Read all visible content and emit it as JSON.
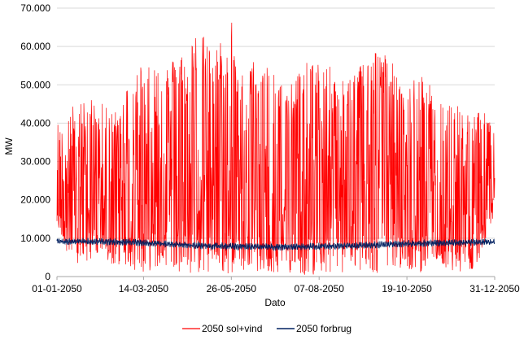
{
  "chart_data": {
    "type": "line",
    "title": "",
    "xlabel": "Dato",
    "ylabel": "MW",
    "ylim": [
      0,
      70000
    ],
    "x_range": [
      "01-01-2050",
      "31-12-2050"
    ],
    "x_ticks": [
      "01-01-2050",
      "14-03-2050",
      "26-05-2050",
      "07-08-2050",
      "19-10-2050",
      "31-12-2050"
    ],
    "y_ticks": [
      "0",
      "10.000",
      "20.000",
      "30.000",
      "40.000",
      "50.000",
      "60.000",
      "70.000"
    ],
    "grid": "horizontal",
    "legend_position": "bottom",
    "series": [
      {
        "name": "2050 sol+vind",
        "color": "#ff0000",
        "x": [
          "01-01-2050",
          "15-01-2050",
          "01-02-2050",
          "15-02-2050",
          "01-03-2050",
          "15-03-2050",
          "01-04-2050",
          "15-04-2050",
          "01-05-2050",
          "15-05-2050",
          "26-05-2050",
          "01-06-2050",
          "15-06-2050",
          "01-07-2050",
          "15-07-2050",
          "01-08-2050",
          "15-08-2050",
          "01-09-2050",
          "15-09-2050",
          "01-10-2050",
          "15-10-2050",
          "01-11-2050",
          "15-11-2050",
          "01-12-2050",
          "15-12-2050",
          "31-12-2050"
        ],
        "peaks": [
          40000,
          45000,
          47000,
          43000,
          50000,
          58000,
          55000,
          59000,
          65000,
          60000,
          68500,
          52000,
          57000,
          55000,
          52000,
          57000,
          55000,
          52000,
          58000,
          61000,
          49000,
          53000,
          46000,
          45000,
          43000,
          44000
        ],
        "troughs": [
          13000,
          2000,
          5000,
          3000,
          2000,
          1000,
          3000,
          1000,
          500,
          1000,
          0,
          2000,
          1000,
          1000,
          1000,
          0,
          1000,
          500,
          1000,
          500,
          2000,
          1000,
          3000,
          0,
          2000,
          16000
        ]
      },
      {
        "name": "2050 forbrug",
        "color": "#002060",
        "x": [
          "01-01-2050",
          "01-03-2050",
          "01-05-2050",
          "01-07-2050",
          "01-09-2050",
          "01-11-2050",
          "31-12-2050"
        ],
        "values": [
          9200,
          9000,
          8000,
          7700,
          8000,
          8700,
          9000
        ]
      }
    ]
  }
}
